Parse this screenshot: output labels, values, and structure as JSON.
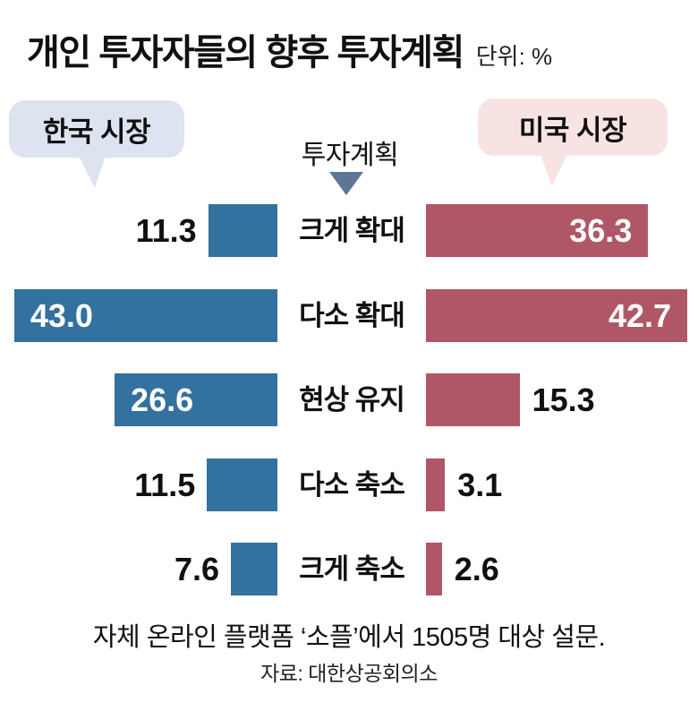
{
  "title": "개인 투자자들의 향후 투자계획",
  "unit_label": "단위: %",
  "legend": {
    "korea_badge": "한국 시장",
    "us_badge": "미국 시장",
    "axis_label": "투자계획"
  },
  "colors": {
    "korea_bar": "#33719f",
    "us_bar": "#b05767",
    "korea_badge_bg": "#dde4f0",
    "us_badge_bg": "#f7e4e2",
    "arrow": "#5c7693"
  },
  "chart_data": {
    "type": "bar",
    "orientation": "horizontal-diverging",
    "unit": "%",
    "title": "개인 투자자들의 향후 투자계획",
    "categories": [
      "크게 확대",
      "다소 확대",
      "현상 유지",
      "다소 축소",
      "크게 축소"
    ],
    "series": [
      {
        "name": "한국 시장",
        "values": [
          11.3,
          43.0,
          26.6,
          11.5,
          7.6
        ],
        "value_labels": [
          "11.3",
          "43.0",
          "26.6",
          "11.5",
          "7.6"
        ],
        "label_inside": [
          false,
          true,
          true,
          false,
          false
        ]
      },
      {
        "name": "미국 시장",
        "values": [
          36.3,
          42.7,
          15.3,
          3.1,
          2.6
        ],
        "value_labels": [
          "36.3",
          "42.7",
          "15.3",
          "3.1",
          "2.6"
        ],
        "label_inside": [
          true,
          true,
          false,
          false,
          false
        ]
      }
    ],
    "max_value": 43.0,
    "legend_position": "top",
    "grid": false
  },
  "footnote": "자체 온라인 플랫폼 ‘소플’에서 1505명 대상 설문.",
  "source": "자료: 대한상공회의소"
}
